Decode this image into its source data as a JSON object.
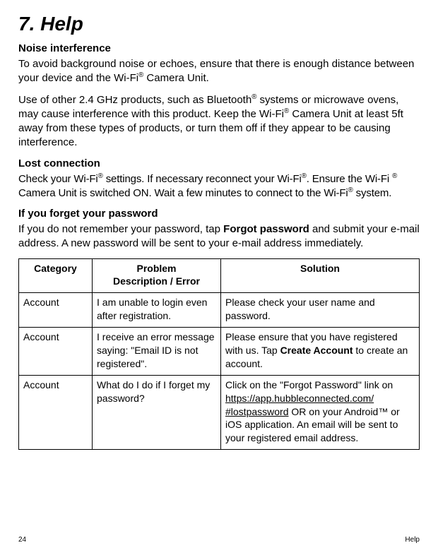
{
  "title": "7. Help",
  "sections": {
    "noise": {
      "heading": "Noise interference",
      "p1_a": "To avoid background noise or echoes, ensure that there is enough distance between your device and the Wi-Fi",
      "p1_b": " Camera Unit.",
      "p2_a": "Use of other 2.4 GHz products, such as Bluetooth",
      "p2_b": " systems or microwave ovens, may cause interference with this product. Keep the Wi-Fi",
      "p2_c": " Camera Unit at least 5ft away from these types of products, or turn them off if they appear to be causing interference."
    },
    "lost": {
      "heading": "Lost connection",
      "p1_a": "Check your Wi-Fi",
      "p1_b": " settings. If necessary reconnect your Wi-Fi",
      "p1_c": ". Ensure the Wi-Fi ",
      "p1_d": " Camera Unit is switched ON. Wait a few minutes to connect to the Wi-Fi",
      "p1_e": " system."
    },
    "forgot": {
      "heading": "If you forget your password",
      "p1_a": "If you do not remember your password, tap ",
      "p1_strong": "Forgot password",
      "p1_b": " and submit your e-mail address. A new password will be sent to your e-mail address immediately."
    }
  },
  "table": {
    "headers": {
      "category": "Category",
      "problem_l1": "Problem",
      "problem_l2": "Description / Error",
      "solution": "Solution"
    },
    "rows": [
      {
        "category": "Account",
        "problem": "I am unable to login even after registration.",
        "solution_plain": "Please check your user name and password."
      },
      {
        "category": "Account",
        "problem": "I receive an error message saying: \"Email ID is not registered\".",
        "solution_a": "Please ensure that you have registered with us. Tap ",
        "solution_strong": "Create Account",
        "solution_b": " to create an account."
      },
      {
        "category": "Account",
        "problem": "What do I do if I forget my password?",
        "solution_a": "Click on the \"Forgot Password\" link on ",
        "solution_link1": "https://app.hubbleconnected.com/",
        "solution_link2": "#lostpassword",
        "solution_b": " OR on your Android™ or iOS application. An email will be sent to your registered email address."
      }
    ]
  },
  "footer": {
    "page_number": "24",
    "section": "Help"
  },
  "reg_mark": "®"
}
